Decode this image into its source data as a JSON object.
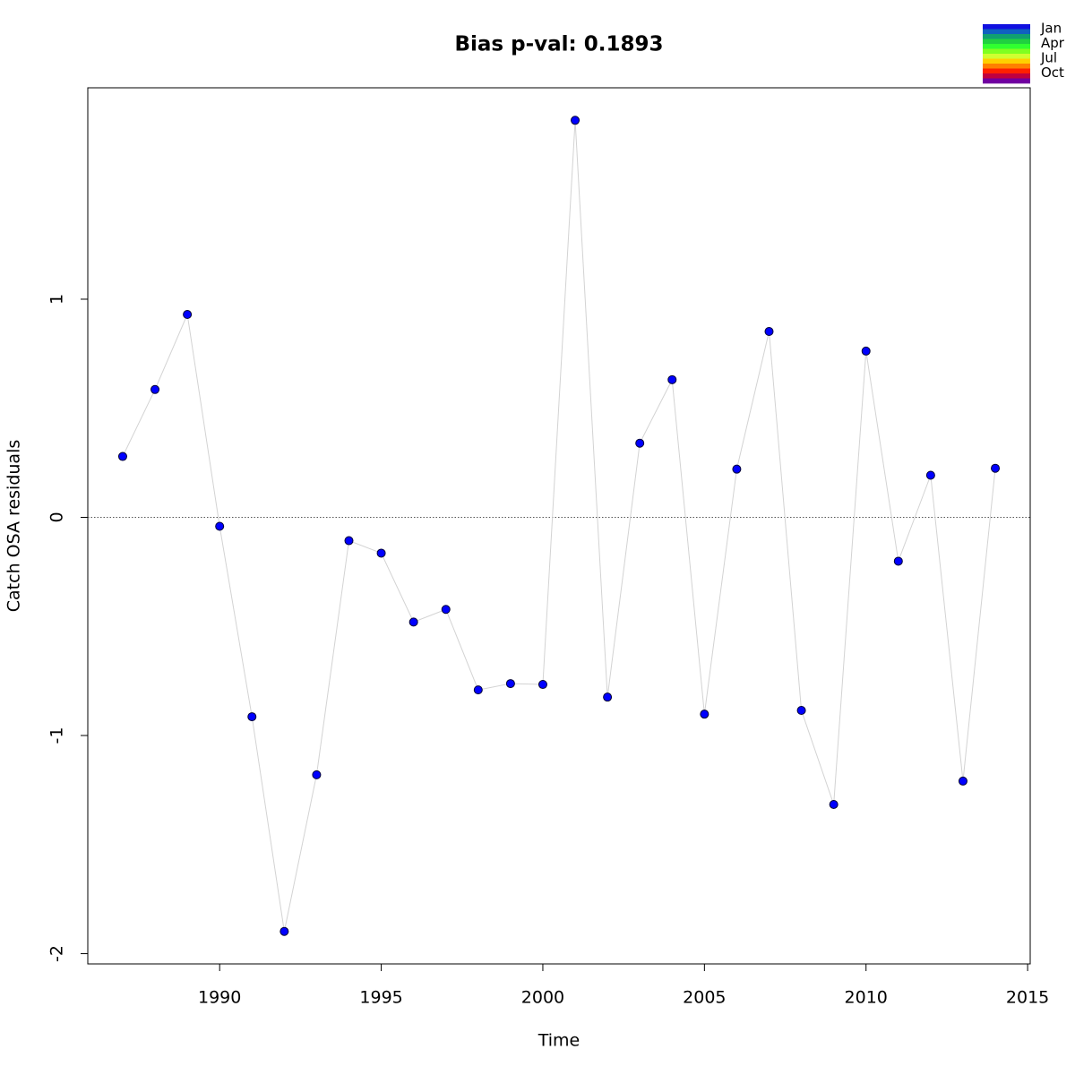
{
  "chart_data": {
    "type": "line",
    "title": "Bias p-val: 0.1893",
    "title_color": "#228B22",
    "x_label": "Time",
    "y_label": "Catch OSA residuals",
    "x": [
      1987,
      1988,
      1989,
      1990,
      1991,
      1992,
      1993,
      1994,
      1995,
      1996,
      1997,
      1998,
      1999,
      2000,
      2001,
      2002,
      2003,
      2004,
      2005,
      2006,
      2007,
      2008,
      2009,
      2010,
      2011,
      2012,
      2013,
      2014
    ],
    "values": [
      0.279,
      0.586,
      0.93,
      -0.041,
      -0.914,
      -1.898,
      -1.18,
      -0.107,
      -0.164,
      -0.48,
      -0.422,
      -0.791,
      -0.762,
      -0.766,
      1.82,
      -0.824,
      0.34,
      0.631,
      -0.902,
      0.221,
      0.852,
      -0.885,
      -1.316,
      0.762,
      -0.201,
      0.193,
      -1.209,
      0.225
    ],
    "color": "#0000FF",
    "line_color": "#d3d3d3",
    "reference_line": 0,
    "xlim": [
      1985.92,
      2015.08
    ],
    "xticks": [
      1990,
      1995,
      2000,
      2005,
      2010,
      2015
    ],
    "ylim": [
      -2.047,
      1.969
    ],
    "yticks": [
      -2,
      -1,
      0,
      1
    ],
    "legend": {
      "labels": [
        "Jan",
        "Apr",
        "Jul",
        "Oct"
      ],
      "colors": [
        "#1010E0",
        "#1060C0",
        "#10A070",
        "#20D040",
        "#30FF30",
        "#80FF20",
        "#D0FF30",
        "#FFD000",
        "#FF8000",
        "#FF2000",
        "#C00040",
        "#7000A0"
      ]
    }
  }
}
